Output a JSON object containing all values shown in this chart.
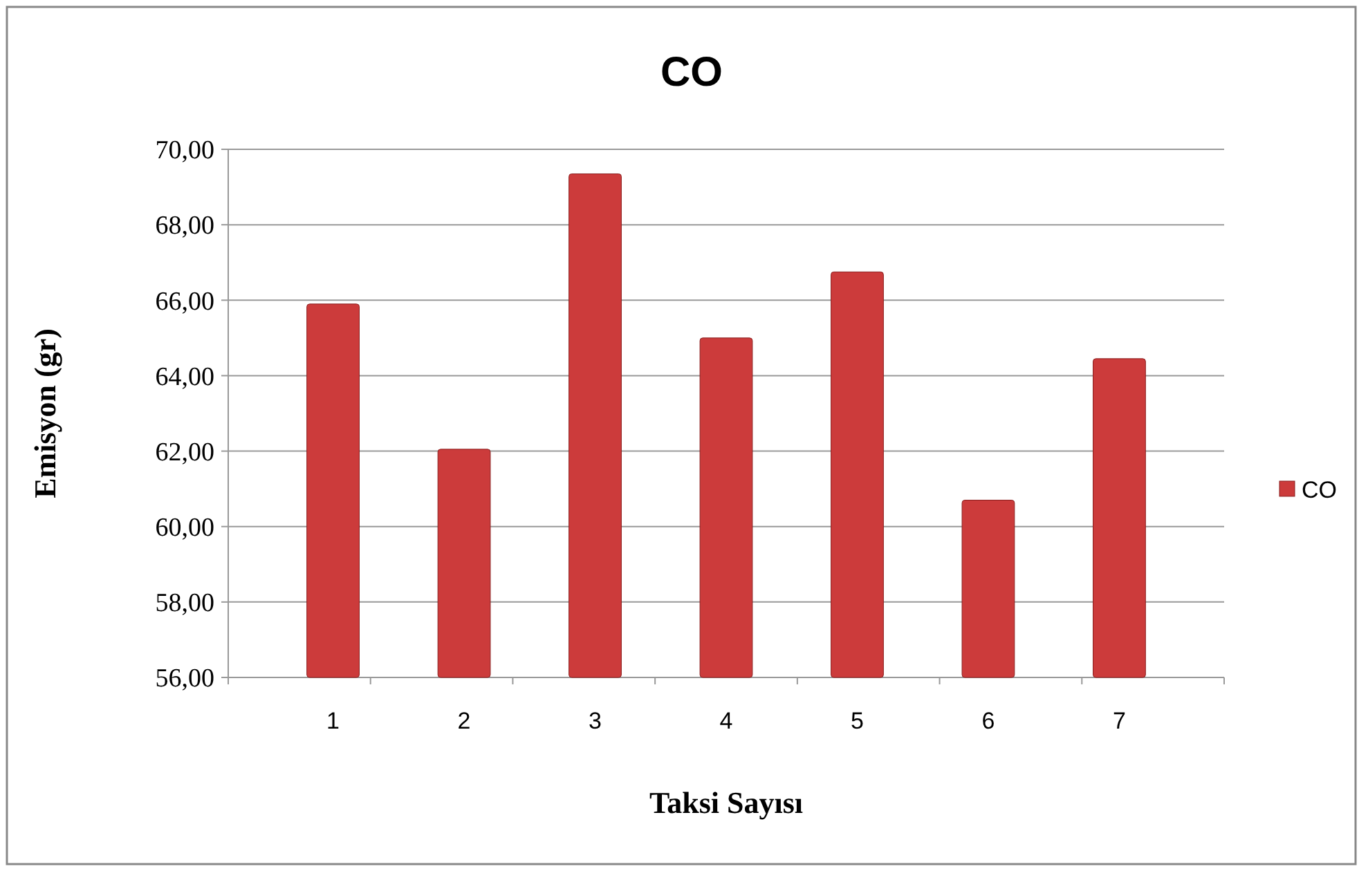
{
  "chart_data": {
    "type": "bar",
    "title": "CO",
    "xlabel": "Taksi Sayısı",
    "ylabel": "Emisyon (gr)",
    "categories": [
      "1",
      "2",
      "3",
      "4",
      "5",
      "6",
      "7"
    ],
    "series": [
      {
        "name": "CO",
        "color": "#cc3b3b",
        "values": [
          65.9,
          62.05,
          69.35,
          65.0,
          66.75,
          60.7,
          64.45
        ]
      }
    ],
    "ylim": [
      56,
      70
    ],
    "yticks": [
      {
        "value": 56,
        "label": "56,00"
      },
      {
        "value": 58,
        "label": "58,00"
      },
      {
        "value": 60,
        "label": "60,00"
      },
      {
        "value": 62,
        "label": "62,00"
      },
      {
        "value": 64,
        "label": "64,00"
      },
      {
        "value": 66,
        "label": "66,00"
      },
      {
        "value": 68,
        "label": "68,00"
      },
      {
        "value": 70,
        "label": "70,00"
      }
    ],
    "grid": "y",
    "legend": "right"
  }
}
